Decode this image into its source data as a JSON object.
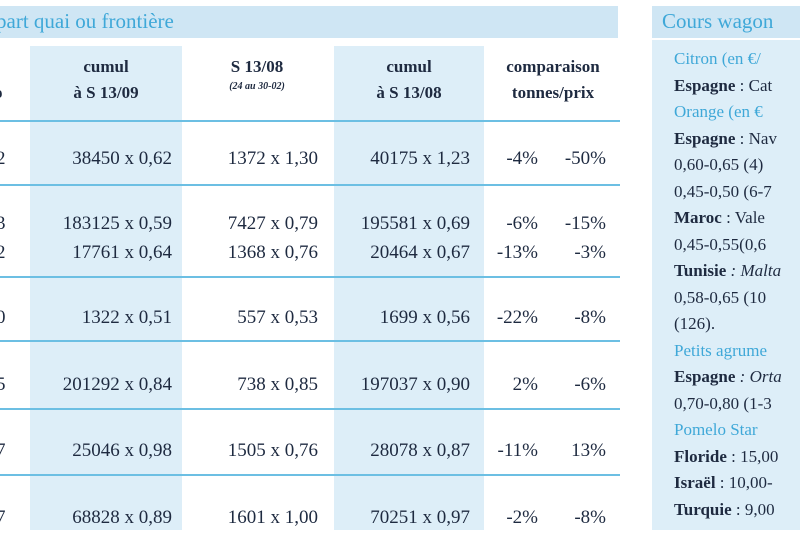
{
  "left_table": {
    "title": "part quai ou frontière",
    "headers": {
      "col0": "o",
      "col1_line1": "cumul",
      "col1_line2": "à S 13/09",
      "col2_line1": "S 13/08",
      "col2_sub": "(24 au 30-02)",
      "col3_line1": "cumul",
      "col3_line2": "à S 13/08",
      "col4_line1": "comparaison",
      "col4_line2": "tonnes/prix"
    },
    "rows": [
      {
        "c0": "2",
        "c1": "38450 x 0,62",
        "c2": "1372 x 1,30",
        "c3": "40175 x 1,23",
        "c4": "-4%",
        "c5": "-50%"
      },
      {
        "c0": "3",
        "c1": "183125 x 0,59",
        "c2": "7427 x 0,79",
        "c3": "195581 x 0,69",
        "c4": "-6%",
        "c5": "-15%"
      },
      {
        "c0": "2",
        "c1": "17761 x 0,64",
        "c2": "1368 x 0,76",
        "c3": "20464 x 0,67",
        "c4": "-13%",
        "c5": "-3%"
      },
      {
        "c0": "0",
        "c1": "1322 x 0,51",
        "c2": "557 x 0,53",
        "c3": "1699 x 0,56",
        "c4": "-22%",
        "c5": "-8%"
      },
      {
        "c0": "5",
        "c1": "201292 x 0,84",
        "c2": "738 x 0,85",
        "c3": "197037 x 0,90",
        "c4": "2%",
        "c5": "-6%"
      },
      {
        "c0": "7",
        "c1": "25046 x 0,98",
        "c2": "1505 x 0,76",
        "c3": "28078 x 0,87",
        "c4": "-11%",
        "c5": "13%"
      },
      {
        "c0": "7",
        "c1": "68828 x 0,89",
        "c2": "1601 x 1,00",
        "c3": "70251 x 0,97",
        "c4": "-2%",
        "c5": "-8%"
      }
    ]
  },
  "right_panel": {
    "title": "Cours wagon",
    "lines": [
      {
        "label": "Citron",
        "rest": " (en €/",
        "style": "blue"
      },
      {
        "label": "Espagne",
        "rest": " : Cat",
        "style": "bold"
      },
      {
        "label": "Orange",
        "rest": " (en €",
        "style": "blue"
      },
      {
        "label": "Espagne",
        "rest": " : Nav",
        "style": "bold"
      },
      {
        "label": "",
        "rest": "0,60-0,65  (4)",
        "style": "plain"
      },
      {
        "label": "",
        "rest": "0,45-0,50 (6-7",
        "style": "plain"
      },
      {
        "label": "Maroc",
        "rest": " : Vale",
        "style": "bold"
      },
      {
        "label": "",
        "rest": "0,45-0,55(0,6",
        "style": "plain"
      },
      {
        "label": "Tunisie",
        "rest": " : Malta",
        "style": "bold-italic"
      },
      {
        "label": "",
        "rest": "0,58-0,65  (10",
        "style": "plain"
      },
      {
        "label": "",
        "rest": "(126).",
        "style": "plain"
      },
      {
        "label": "Petits agrume",
        "rest": "",
        "style": "blue"
      },
      {
        "label": "Espagne",
        "rest": " : Orta",
        "style": "bold-italic"
      },
      {
        "label": "",
        "rest": "0,70-0,80 (1-3",
        "style": "plain"
      },
      {
        "label": "Pomelo Star",
        "rest": "",
        "style": "blue"
      },
      {
        "label": "Floride",
        "rest": " : 15,00",
        "style": "bold"
      },
      {
        "label": "Israël",
        "rest": " : 10,00-",
        "style": "bold"
      },
      {
        "label": "Turquie",
        "rest": " : 9,00",
        "style": "bold"
      }
    ]
  }
}
